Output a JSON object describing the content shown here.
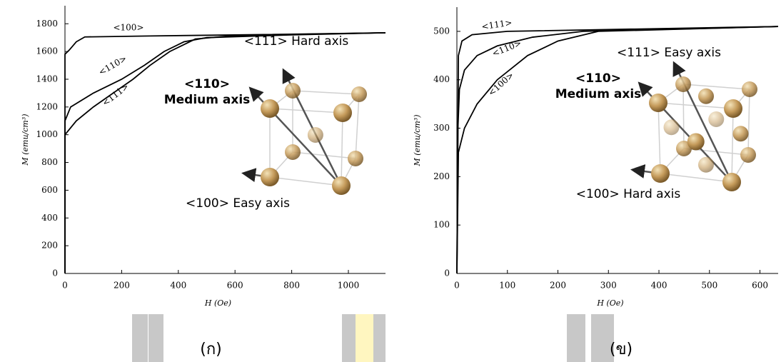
{
  "chart_data": [
    {
      "type": "line",
      "panel_label": "(ก)",
      "x_label": "H (Oe)",
      "y_label": "M (emu/cm³)",
      "xlim": [
        0,
        1131
      ],
      "ylim": [
        0,
        1930
      ],
      "xticks": [
        0,
        200,
        400,
        600,
        800,
        1000
      ],
      "yticks": [
        0,
        200,
        400,
        600,
        800,
        1000,
        1200,
        1400,
        1600,
        1800
      ],
      "series": [
        {
          "name": "<100>",
          "color": "#000000",
          "x": [
            0,
            0,
            15,
            40,
            70,
            300,
            700,
            1131
          ],
          "values": [
            0,
            1580,
            1610,
            1670,
            1705,
            1712,
            1722,
            1735
          ]
        },
        {
          "name": "<110>",
          "color": "#000000",
          "x": [
            0,
            0,
            20,
            100,
            200,
            280,
            350,
            420,
            500,
            800,
            1131
          ],
          "values": [
            0,
            1100,
            1200,
            1300,
            1400,
            1500,
            1600,
            1670,
            1700,
            1720,
            1735
          ]
        },
        {
          "name": "<111>",
          "color": "#000000",
          "x": [
            0,
            0,
            40,
            100,
            170,
            240,
            300,
            370,
            460,
            600,
            1131
          ],
          "values": [
            0,
            1000,
            1100,
            1200,
            1300,
            1400,
            1500,
            1600,
            1690,
            1715,
            1735
          ]
        }
      ],
      "annotations": [
        "<111> Hard axis",
        "<110>",
        "Medium axis",
        "<100> Easy axis"
      ]
    },
    {
      "type": "line",
      "panel_label": "(ข)",
      "x_label": "H (Oe)",
      "y_label": "M (emu/cm³)",
      "xlim": [
        0,
        636
      ],
      "ylim": [
        0,
        550
      ],
      "xticks": [
        0,
        100,
        200,
        300,
        400,
        500,
        600
      ],
      "yticks": [
        0,
        100,
        200,
        300,
        400,
        500
      ],
      "series": [
        {
          "name": "<111>",
          "color": "#000000",
          "x": [
            0,
            3,
            10,
            30,
            100,
            636
          ],
          "values": [
            0,
            450,
            480,
            493,
            500,
            510
          ]
        },
        {
          "name": "<110>",
          "color": "#000000",
          "x": [
            0,
            2,
            5,
            15,
            40,
            80,
            150,
            250,
            636
          ],
          "values": [
            0,
            300,
            380,
            420,
            450,
            470,
            488,
            500,
            510
          ]
        },
        {
          "name": "<100>",
          "color": "#000000",
          "x": [
            0,
            3,
            15,
            40,
            80,
            140,
            200,
            280,
            636
          ],
          "values": [
            0,
            250,
            300,
            350,
            400,
            450,
            480,
            500,
            510
          ]
        }
      ],
      "annotations": [
        "<111> Easy axis",
        "<110>",
        "Medium axis",
        "<100> Hard axis"
      ]
    }
  ]
}
